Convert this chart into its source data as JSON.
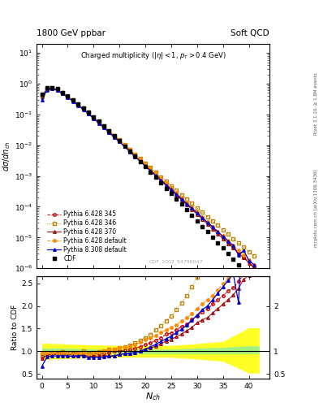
{
  "title_left": "1800 GeV ppbar",
  "title_right": "Soft QCD",
  "plot_title": "Charged multiplicity (|#eta| < 1, p_{T} > 0.4 GeV)",
  "xlabel": "N_{ch}",
  "ylabel_top": "d#sigma/dn_{ch}",
  "ylabel_bottom": "Ratio to CDF",
  "right_label_top": "Rivet 3.1.10, ≥ 1.8M events",
  "right_label_bot": "mcplots.cern.ch [arXiv:1306.3436]",
  "dataset_label": "CDF_2002_S4796047",
  "xlim": [
    -1,
    44
  ],
  "ylim_top_lo": 1e-06,
  "ylim_top_hi": 20,
  "ylim_bottom_lo": 0.4,
  "ylim_bottom_hi": 2.65,
  "cdf_x": [
    0,
    1,
    2,
    3,
    4,
    5,
    6,
    7,
    8,
    9,
    10,
    11,
    12,
    13,
    14,
    15,
    16,
    17,
    18,
    19,
    20,
    21,
    22,
    23,
    24,
    25,
    26,
    27,
    28,
    29,
    30,
    31,
    32,
    33,
    34,
    35,
    36,
    37,
    38,
    39,
    40,
    41
  ],
  "cdf_y": [
    0.45,
    0.72,
    0.75,
    0.68,
    0.52,
    0.4,
    0.3,
    0.22,
    0.16,
    0.12,
    0.085,
    0.06,
    0.042,
    0.029,
    0.02,
    0.014,
    0.0095,
    0.0065,
    0.0044,
    0.003,
    0.002,
    0.00135,
    0.0009,
    0.0006,
    0.0004,
    0.00027,
    0.00018,
    0.00012,
    8e-05,
    5.3e-05,
    3.5e-05,
    2.3e-05,
    1.55e-05,
    1.03e-05,
    6.8e-06,
    4.5e-06,
    3e-06,
    2e-06,
    1.3e-06,
    8.5e-07,
    5.6e-07,
    3.5e-07
  ],
  "p345_x": [
    0,
    1,
    2,
    3,
    4,
    5,
    6,
    7,
    8,
    9,
    10,
    11,
    12,
    13,
    14,
    15,
    16,
    17,
    18,
    19,
    20,
    21,
    22,
    23,
    24,
    25,
    26,
    27,
    28,
    29,
    30,
    31,
    32,
    33,
    34,
    35,
    36,
    37,
    38,
    39,
    40,
    41
  ],
  "p345_y": [
    0.4,
    0.68,
    0.72,
    0.65,
    0.5,
    0.38,
    0.285,
    0.21,
    0.155,
    0.112,
    0.08,
    0.057,
    0.04,
    0.028,
    0.02,
    0.014,
    0.0098,
    0.0068,
    0.0047,
    0.0033,
    0.0023,
    0.0016,
    0.00112,
    0.00078,
    0.00055,
    0.00038,
    0.000265,
    0.000185,
    0.000128,
    9e-05,
    6.2e-05,
    4.3e-05,
    3e-05,
    2.1e-05,
    1.45e-05,
    1e-05,
    7e-06,
    4.8e-06,
    3.3e-06,
    2.3e-06,
    1.6e-06,
    1.1e-06
  ],
  "p346_x": [
    0,
    1,
    2,
    3,
    4,
    5,
    6,
    7,
    8,
    9,
    10,
    11,
    12,
    13,
    14,
    15,
    16,
    17,
    18,
    19,
    20,
    21,
    22,
    23,
    24,
    25,
    26,
    27,
    28,
    29,
    30,
    31,
    32,
    33,
    34,
    35,
    36,
    37,
    38,
    39,
    40,
    41
  ],
  "p346_y": [
    0.42,
    0.7,
    0.73,
    0.66,
    0.51,
    0.39,
    0.29,
    0.215,
    0.16,
    0.115,
    0.082,
    0.059,
    0.042,
    0.03,
    0.021,
    0.015,
    0.0105,
    0.0074,
    0.0052,
    0.0037,
    0.0026,
    0.00185,
    0.00132,
    0.00094,
    0.00067,
    0.00048,
    0.000345,
    0.000248,
    0.000178,
    0.000128,
    9.2e-05,
    6.6e-05,
    4.8e-05,
    3.4e-05,
    2.5e-05,
    1.8e-05,
    1.3e-05,
    9.3e-06,
    6.7e-06,
    4.8e-06,
    3.5e-06,
    2.5e-06
  ],
  "p370_x": [
    0,
    1,
    2,
    3,
    4,
    5,
    6,
    7,
    8,
    9,
    10,
    11,
    12,
    13,
    14,
    15,
    16,
    17,
    18,
    19,
    20,
    21,
    22,
    23,
    24,
    25,
    26,
    27,
    28,
    29,
    30,
    31,
    32,
    33,
    34,
    35,
    36,
    37,
    38,
    39,
    40,
    41
  ],
  "p370_y": [
    0.38,
    0.66,
    0.7,
    0.63,
    0.49,
    0.37,
    0.275,
    0.2,
    0.148,
    0.107,
    0.076,
    0.054,
    0.038,
    0.026,
    0.018,
    0.013,
    0.009,
    0.0062,
    0.0043,
    0.003,
    0.0021,
    0.00145,
    0.001,
    0.0007,
    0.00049,
    0.00034,
    0.000238,
    0.000166,
    0.000116,
    8.1e-05,
    5.7e-05,
    3.9e-05,
    2.7e-05,
    1.9e-05,
    1.32e-05,
    9.2e-06,
    6.4e-06,
    4.5e-06,
    3.1e-06,
    2.2e-06,
    1.5e-06,
    1e-06
  ],
  "pdef_x": [
    0,
    1,
    2,
    3,
    4,
    5,
    6,
    7,
    8,
    9,
    10,
    11,
    12,
    13,
    14,
    15,
    16,
    17,
    18,
    19,
    20,
    21,
    22,
    23,
    24,
    25,
    26,
    27,
    28,
    29,
    30,
    31,
    32,
    33,
    34,
    35,
    36,
    37,
    38,
    39,
    40,
    41
  ],
  "pdef_y": [
    0.44,
    0.7,
    0.72,
    0.64,
    0.5,
    0.38,
    0.283,
    0.21,
    0.155,
    0.113,
    0.082,
    0.059,
    0.042,
    0.03,
    0.021,
    0.015,
    0.0105,
    0.0073,
    0.0051,
    0.0036,
    0.0025,
    0.00175,
    0.00122,
    0.00085,
    0.00059,
    0.00041,
    0.000286,
    0.0002,
    0.000139,
    9.7e-05,
    6.8e-05,
    4.7e-05,
    3.3e-05,
    2.3e-05,
    1.6e-05,
    1.12e-05,
    7.8e-06,
    5.5e-06,
    3.8e-06,
    2.7e-06,
    1.9e-06,
    1.3e-06
  ],
  "p8def_x": [
    0,
    1,
    2,
    3,
    4,
    5,
    6,
    7,
    8,
    9,
    10,
    11,
    12,
    13,
    14,
    15,
    16,
    17,
    18,
    19,
    20,
    21,
    22,
    23,
    24,
    25,
    26,
    27,
    28,
    29,
    30,
    31,
    32,
    33,
    34,
    35,
    36,
    37,
    38,
    39,
    40,
    41
  ],
  "p8def_y": [
    0.3,
    0.63,
    0.68,
    0.61,
    0.47,
    0.36,
    0.268,
    0.197,
    0.145,
    0.104,
    0.074,
    0.052,
    0.037,
    0.026,
    0.018,
    0.013,
    0.009,
    0.0062,
    0.0043,
    0.003,
    0.0021,
    0.00148,
    0.00104,
    0.00073,
    0.00051,
    0.00036,
    0.000254,
    0.000179,
    0.000126,
    8.9e-05,
    6.3e-05,
    4.4e-05,
    3.1e-05,
    2.2e-05,
    1.55e-05,
    1.09e-05,
    7.7e-06,
    5.4e-06,
    2.7e-06,
    3.8e-06,
    1.8e-06,
    1.3e-06
  ],
  "green_band_x": [
    0,
    5,
    10,
    15,
    20,
    25,
    30,
    35,
    40,
    42
  ],
  "green_band_low": [
    0.93,
    0.93,
    0.95,
    0.95,
    0.95,
    0.95,
    0.95,
    0.95,
    0.95,
    0.95
  ],
  "green_band_high": [
    1.07,
    1.07,
    1.05,
    1.05,
    1.05,
    1.05,
    1.07,
    1.09,
    1.12,
    1.12
  ],
  "yellow_band_x": [
    0,
    5,
    10,
    15,
    20,
    25,
    30,
    35,
    40,
    42
  ],
  "yellow_band_low": [
    0.82,
    0.84,
    0.86,
    0.87,
    0.87,
    0.87,
    0.83,
    0.78,
    0.52,
    0.52
  ],
  "yellow_band_high": [
    1.18,
    1.16,
    1.14,
    1.13,
    1.13,
    1.13,
    1.17,
    1.22,
    1.52,
    1.52
  ],
  "colors": {
    "cdf": "#000000",
    "p345": "#cc0000",
    "p346": "#b8860b",
    "p370": "#990000",
    "pdef": "#ff8c00",
    "p8def": "#0000cc"
  }
}
